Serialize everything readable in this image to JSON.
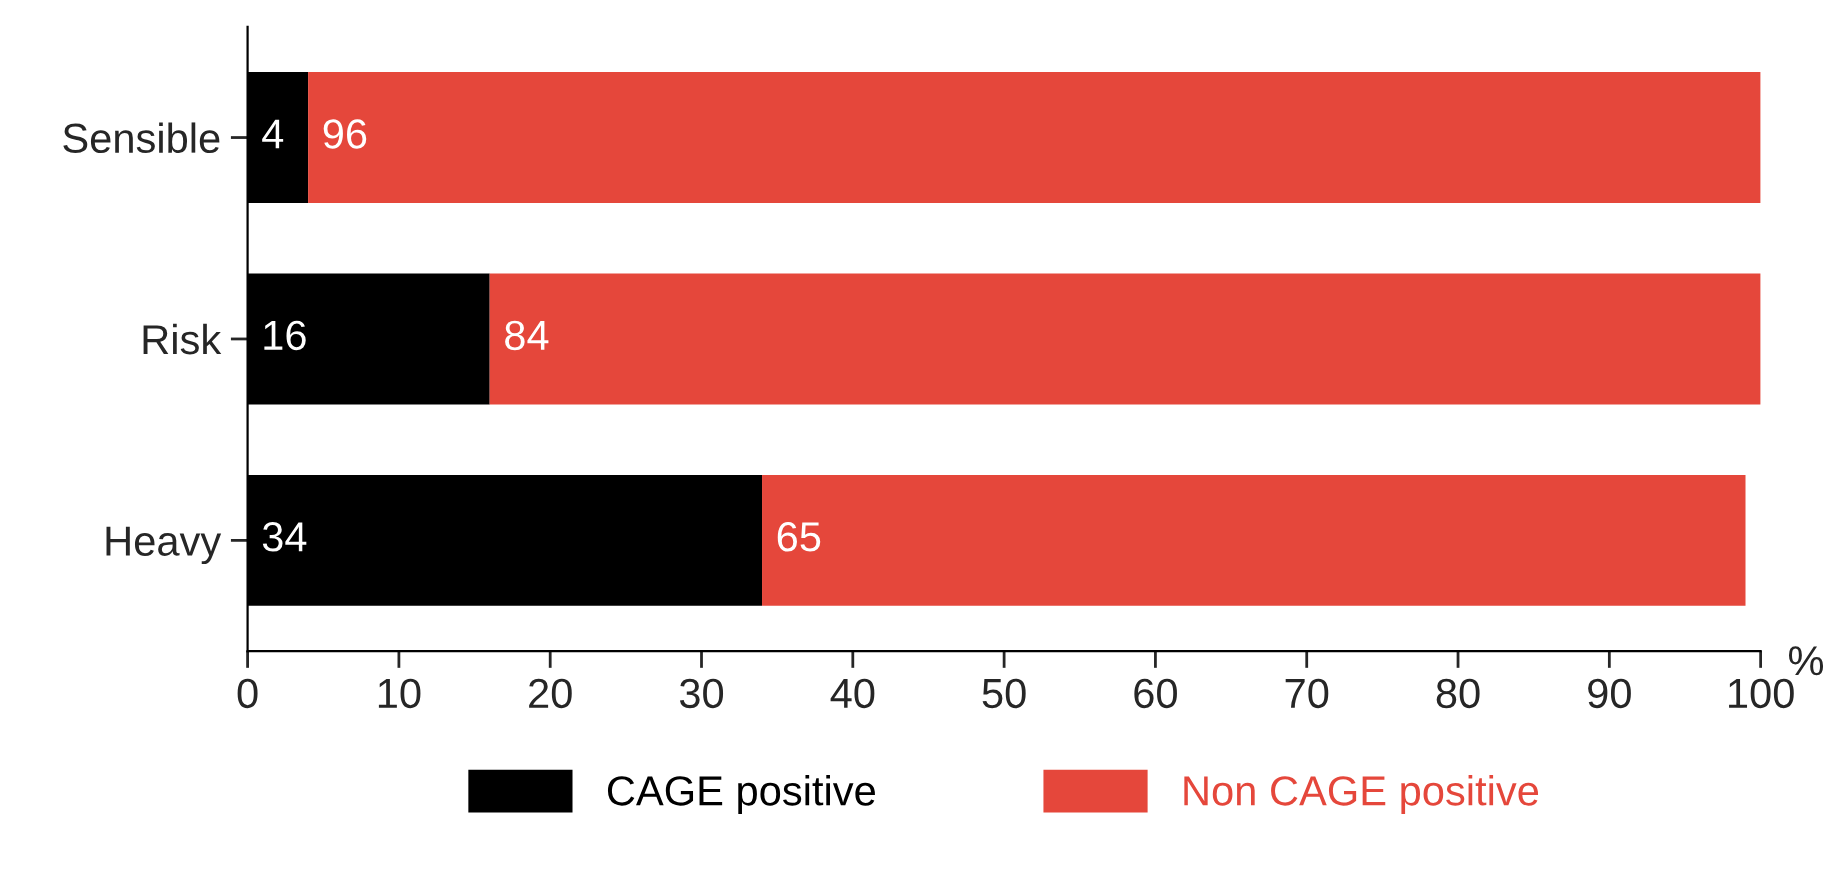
{
  "chart_data": {
    "type": "bar",
    "orientation": "horizontal",
    "stacked": true,
    "categories": [
      "Sensible",
      "Risk",
      "Heavy"
    ],
    "series": [
      {
        "name": "CAGE positive",
        "color": "#000000",
        "values": [
          4,
          16,
          34
        ]
      },
      {
        "name": "Non CAGE positive",
        "color": "#e5473b",
        "values": [
          96,
          84,
          65
        ]
      }
    ],
    "xlabel": "%",
    "xlim": [
      0,
      100
    ],
    "xticks": [
      0,
      10,
      20,
      30,
      40,
      50,
      60,
      70,
      80,
      90,
      100
    ],
    "data_labels": true,
    "legend": "bottom",
    "grid": false
  }
}
